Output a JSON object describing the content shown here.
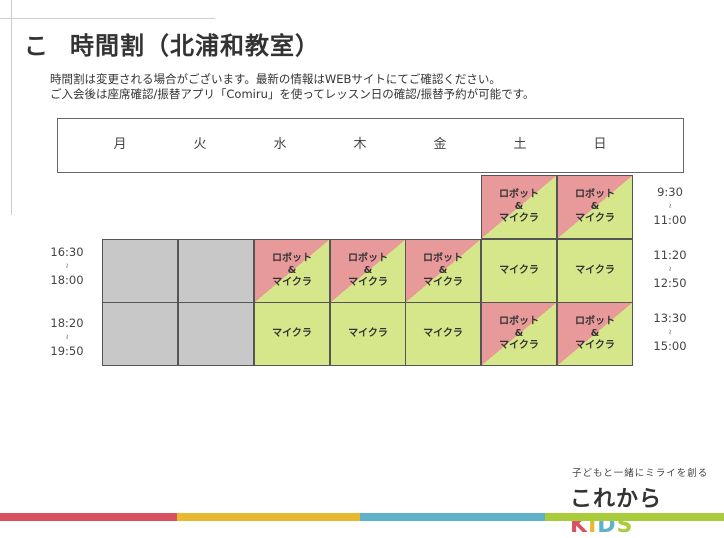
{
  "heading": {
    "mark": "こ",
    "title": "時間割（北浦和教室）"
  },
  "description": [
    "時間割は変更される場合がございます。最新の情報はWEBサイトにてご確認ください。",
    "ご入会後は座席確認/振替アプリ「Comiru」を使ってレッスン日の確認/振替予約が可能です。"
  ],
  "days": [
    "月",
    "火",
    "水",
    "木",
    "金",
    "土",
    "日"
  ],
  "labels": {
    "both_top": "ロボット",
    "amp": "&",
    "maicra": "マイクラ"
  },
  "left_times": [
    {
      "start": "16:30",
      "sep": "≀",
      "end": "18:00"
    },
    {
      "start": "18:20",
      "sep": "≀",
      "end": "19:50"
    }
  ],
  "right_times": [
    {
      "start": "9:30",
      "sep": "≀",
      "end": "11:00"
    },
    {
      "start": "11:20",
      "sep": "≀",
      "end": "12:50"
    },
    {
      "start": "13:30",
      "sep": "≀",
      "end": "15:00"
    }
  ],
  "schedule": [
    [
      "none",
      "none",
      "none",
      "none",
      "none",
      "both",
      "both"
    ],
    [
      "closed",
      "closed",
      "both",
      "both",
      "both",
      "maicra",
      "maicra"
    ],
    [
      "closed",
      "closed",
      "maicra",
      "maicra",
      "maicra",
      "both",
      "both"
    ]
  ],
  "colors": {
    "robot": "#e8999a",
    "maicra": "#d6e68a",
    "closed": "#c8c8c8"
  },
  "logo": {
    "slogan": "子どもと一緒にミライを創る",
    "text": "これから",
    "kids": [
      "K",
      "I",
      "D",
      "S"
    ],
    "kids_colors": [
      "#d9515f",
      "#e8b92e",
      "#5fb0c9",
      "#a9cc3a"
    ]
  },
  "footer_colors": [
    "#d9515f",
    "#e8b92e",
    "#5fb0c9",
    "#a9cc3a"
  ]
}
